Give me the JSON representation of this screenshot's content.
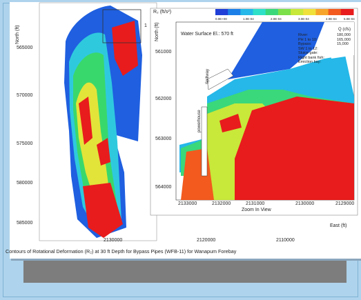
{
  "chart_data": {
    "type": "heatmap",
    "title": "Contours of Rotational Deformation (R₂) at 30 ft Depth for Bypass Pipes (WFB-11) for Wanapum Forebay",
    "main_plot": {
      "ylabel": "North (ft)",
      "y_ticks": [
        "565000",
        "570000",
        "575000",
        "580000",
        "585000"
      ],
      "x_ticks": [
        "2130000",
        "2120000",
        "2110000"
      ],
      "xlabel": "East (ft)"
    },
    "inset": {
      "legend_title": "R₂ (ft/s²)",
      "legend_ticks": [
        "0.0E+00",
        "1.0E-04",
        "2.0E-04",
        "3.0E-04",
        "4.0E-04",
        "5.0E-04"
      ],
      "legend_colors": [
        "#1f3fd6",
        "#1c7fe8",
        "#25b8e8",
        "#2ee0c8",
        "#3ad87a",
        "#7be04a",
        "#c8e83a",
        "#f0e03a",
        "#f7a52a",
        "#f25a1e",
        "#e81c1c"
      ],
      "water_surface": "Water Surface El.: 570 ft",
      "ylabel": "North (ft)",
      "y_ticks": [
        "561000",
        "562000",
        "563000",
        "564000"
      ],
      "x_ticks": [
        "2133000",
        "2132000",
        "2131000",
        "2130000",
        "2129000"
      ],
      "xlabel": "Zoom In View",
      "flow_header": "Q (cfs)",
      "flows": [
        {
          "name": "River:",
          "value": "180,000"
        },
        {
          "name": "PH 1 to 10:",
          "value": "165,000"
        },
        {
          "name": "Bypass:",
          "value": "15,000"
        },
        {
          "name": "SW 1 to 12:",
          "value": ""
        },
        {
          "name": "Sluice gate:",
          "value": ""
        },
        {
          "name": "Right bank fish:",
          "value": ""
        },
        {
          "name": "Emiction bay:",
          "value": ""
        }
      ],
      "labels": {
        "spillway": "Spillway",
        "powerhouse": "powerhouse"
      }
    },
    "inset_marker": "1"
  }
}
